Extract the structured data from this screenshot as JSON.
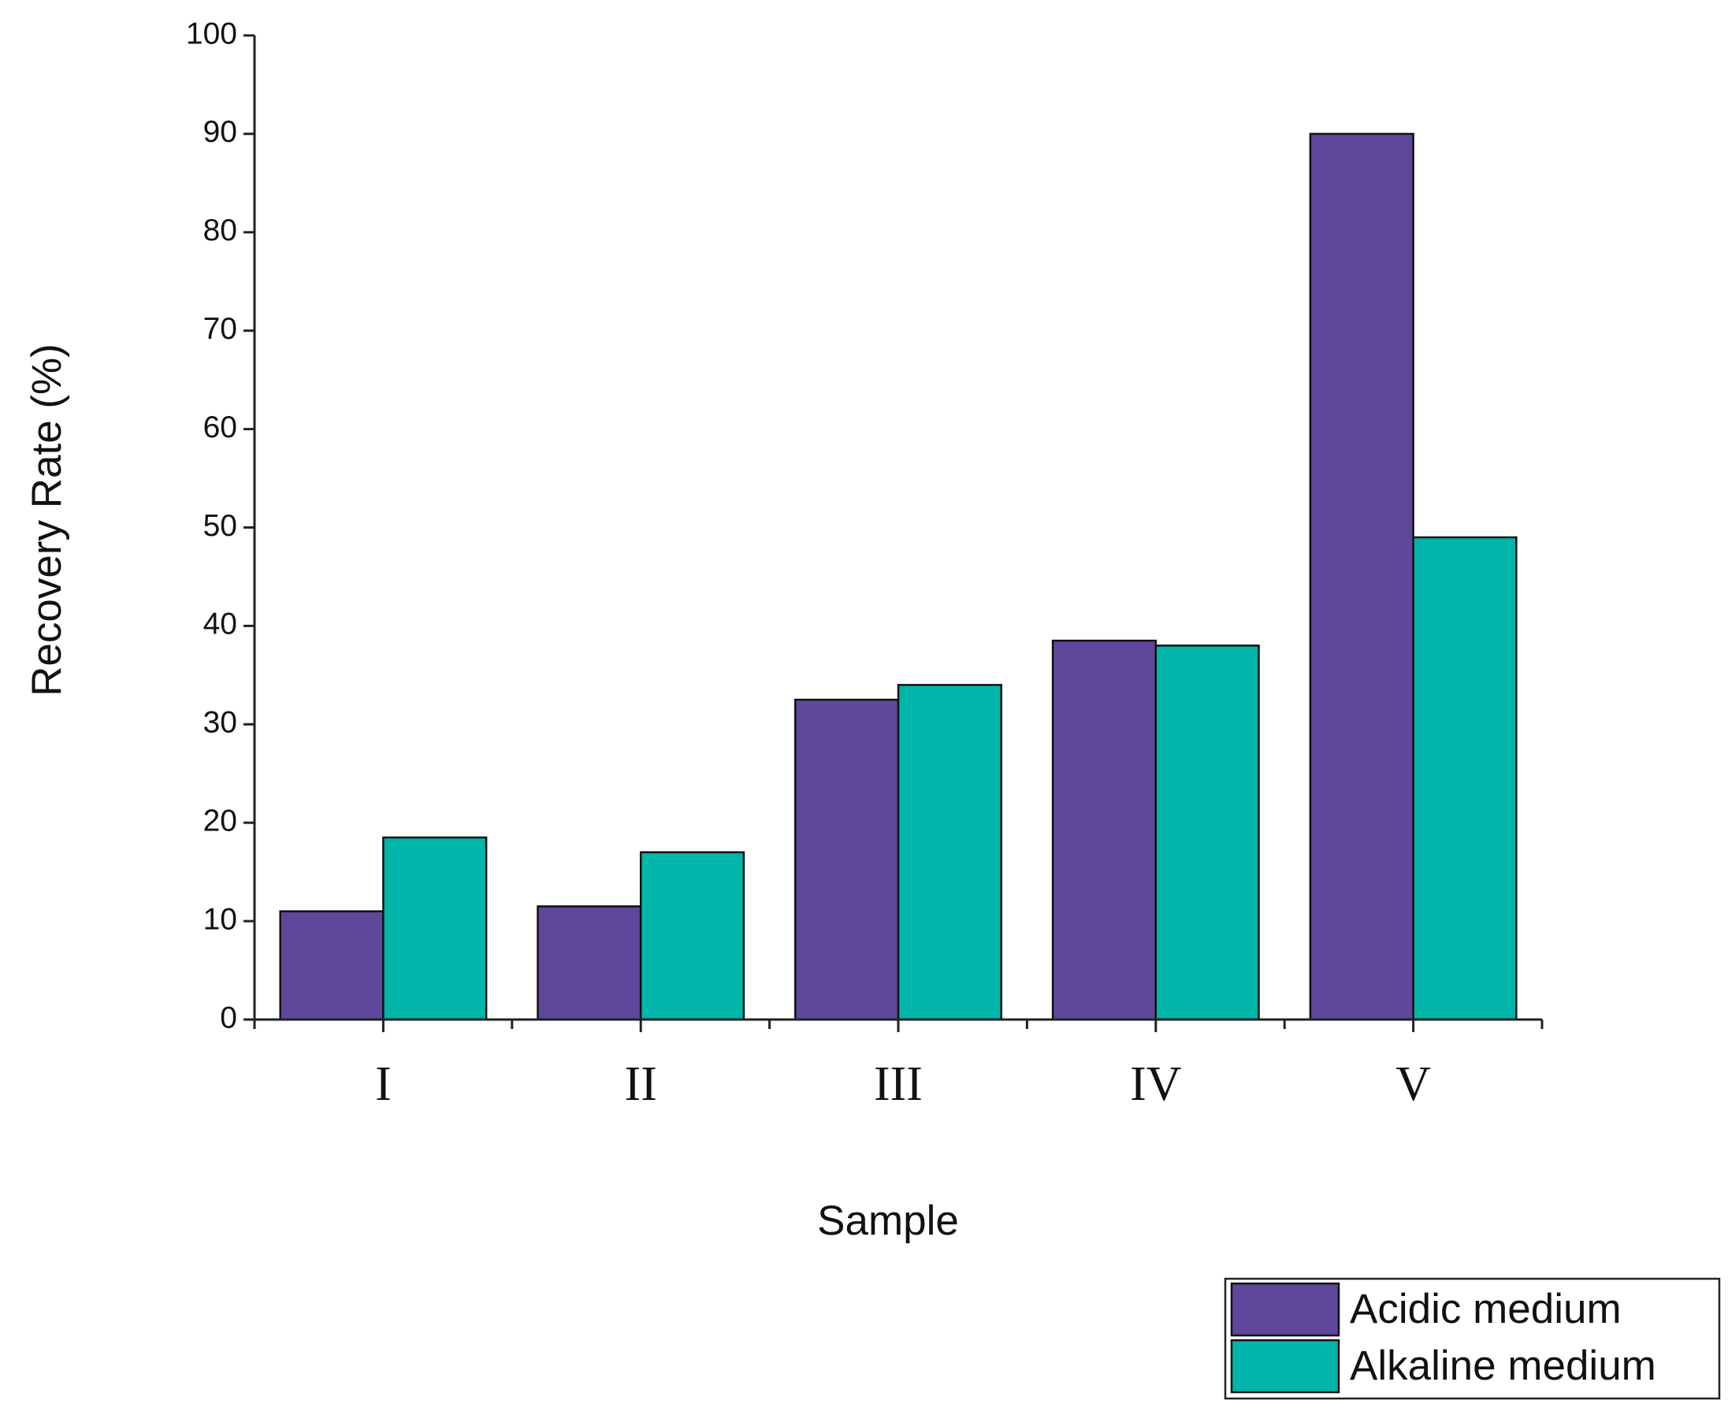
{
  "chart_data": {
    "type": "bar",
    "y_label": "Recovery Rate (%)",
    "x_label": "Sample",
    "categories": [
      "I",
      "II",
      "III",
      "IV",
      "V"
    ],
    "series": [
      {
        "name": "Acidic medium",
        "color": "#5f479c",
        "values": [
          11,
          11.5,
          32.5,
          38.5,
          90
        ]
      },
      {
        "name": "Alkaline medium",
        "color": "#00b5aa",
        "values": [
          18.5,
          17,
          34,
          38,
          49
        ]
      }
    ],
    "ylim": [
      0,
      100
    ],
    "yticks": [
      0,
      10,
      20,
      30,
      40,
      50,
      60,
      70,
      80,
      90,
      100
    ],
    "grid": false,
    "legend": "bottom-right"
  }
}
